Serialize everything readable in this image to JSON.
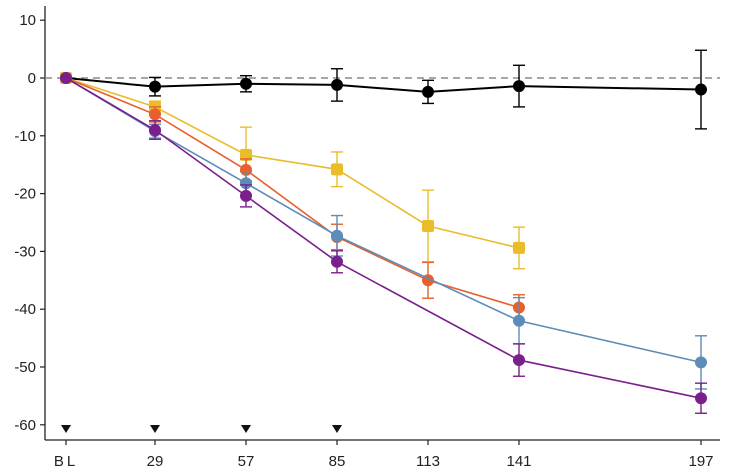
{
  "chart_data": {
    "type": "line",
    "title": "",
    "xlabel": "",
    "ylabel": "",
    "x_categories": [
      "BL",
      "29",
      "57",
      "85",
      "113",
      "141",
      "197"
    ],
    "x_values": [
      0,
      29,
      57,
      85,
      113,
      141,
      197
    ],
    "ylim": [
      -62,
      12
    ],
    "yticks": [
      10,
      0,
      -10,
      -20,
      -30,
      -40,
      -50,
      -60
    ],
    "reference_line": {
      "y": 0,
      "style": "dashed",
      "color": "#8a8a8a"
    },
    "dosing_markers_x": [
      0,
      29,
      57,
      85
    ],
    "grid": false,
    "legend": "none",
    "series": [
      {
        "color": "#000000",
        "marker": "circle",
        "x": [
          0,
          29,
          57,
          85,
          113,
          141,
          197
        ],
        "y": [
          0,
          -1.5,
          -1.0,
          -1.2,
          -2.4,
          -1.4,
          -2.0
        ],
        "err": [
          0,
          1.6,
          1.4,
          2.8,
          2.0,
          3.6,
          6.8
        ]
      },
      {
        "color": "#e9bd2a",
        "marker": "square",
        "x": [
          0,
          29,
          57,
          85,
          113,
          141
        ],
        "y": [
          0,
          -5.0,
          -13.3,
          -15.8,
          -25.6,
          -29.4
        ],
        "err": [
          0,
          1.0,
          4.8,
          3.0,
          6.2,
          3.6
        ]
      },
      {
        "color": "#e8602c",
        "marker": "circle",
        "x": [
          0,
          29,
          57,
          85,
          113,
          141
        ],
        "y": [
          0,
          -6.3,
          -15.9,
          -27.5,
          -35.0,
          -39.7
        ],
        "err": [
          0,
          1.3,
          1.9,
          2.2,
          3.1,
          2.2
        ]
      },
      {
        "color": "#5b8db8",
        "marker": "circle",
        "x": [
          0,
          29,
          57,
          85,
          141,
          197
        ],
        "y": [
          0,
          -9.2,
          -18.2,
          -27.3,
          -42.0,
          -49.2
        ],
        "err": [
          0,
          1.2,
          2.0,
          3.5,
          4.0,
          4.6
        ]
      },
      {
        "color": "#7b1f8c",
        "marker": "circle",
        "x": [
          0,
          29,
          57,
          85,
          141,
          197
        ],
        "y": [
          0,
          -9.0,
          -20.4,
          -31.8,
          -48.8,
          -55.4
        ],
        "err": [
          0,
          1.6,
          1.9,
          1.9,
          2.8,
          2.6
        ]
      }
    ]
  }
}
